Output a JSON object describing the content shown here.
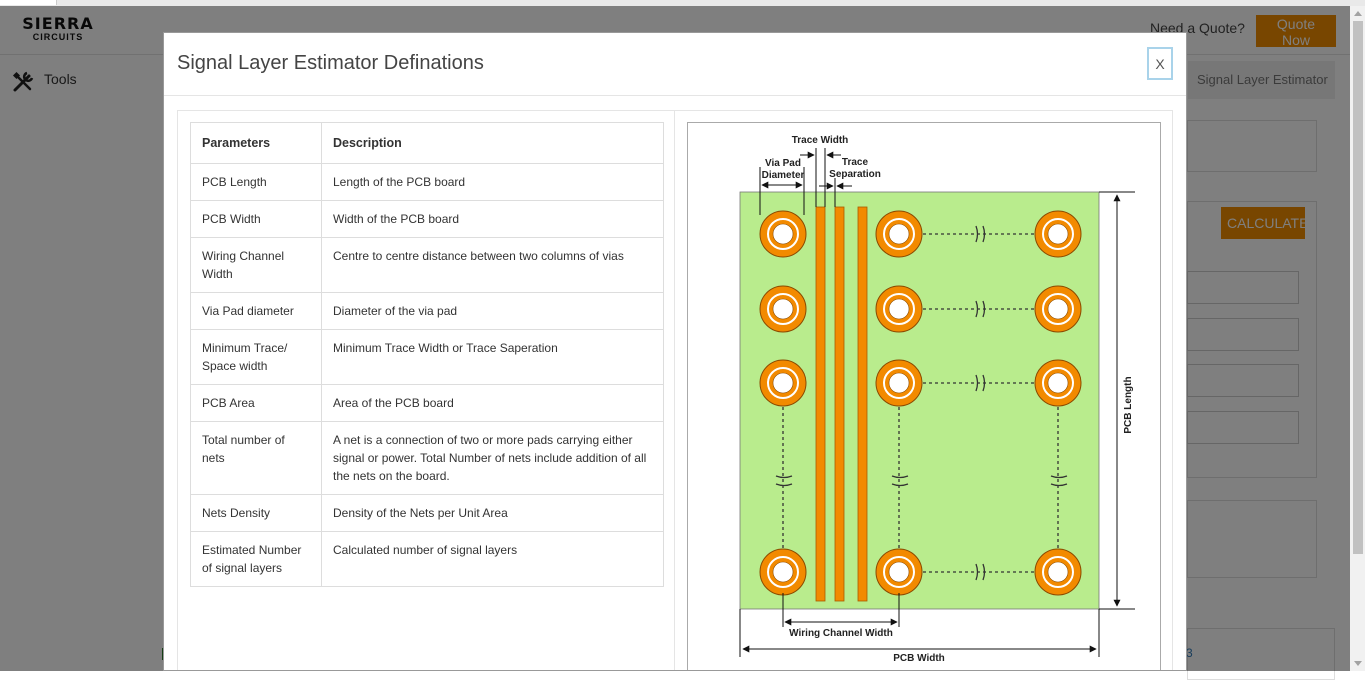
{
  "header": {
    "logo_line1": "SIERRA",
    "logo_line2": "CIRCUITS",
    "need_quote": "Need a Quote?",
    "quote_button": "Quote Now"
  },
  "sidebar": {
    "tools_label": "Tools"
  },
  "breadcrumb": {
    "current": "Signal Layer Estimator"
  },
  "main": {
    "calculate_button": "CALCULATE",
    "footer_link_fragment": "3"
  },
  "modal": {
    "title": "Signal Layer Estimator Definations",
    "close_label": "X",
    "table": {
      "headers": [
        "Parameters",
        "Description"
      ],
      "rows": [
        {
          "param": "PCB Length",
          "desc": "Length of the PCB board"
        },
        {
          "param": "PCB Width",
          "desc": "Width of the PCB board"
        },
        {
          "param": "Wiring Channel Width",
          "desc": "Centre to centre distance between two columns of vias"
        },
        {
          "param": "Via Pad diameter",
          "desc": "Diameter of the via pad"
        },
        {
          "param": "Minimum Trace/ Space width",
          "desc": "Minimum Trace Width or Trace Saperation"
        },
        {
          "param": "PCB Area",
          "desc": "Area of the PCB board"
        },
        {
          "param": "Total number of nets",
          "desc": "A net is a connection of two or more pads carrying either signal or power. Total Number of nets include addition of all the nets on the board."
        },
        {
          "param": "Nets Density",
          "desc": "Density of the Nets per Unit Area"
        },
        {
          "param": "Estimated Number of signal layers",
          "desc": "Calculated number of signal layers"
        }
      ]
    },
    "diagram": {
      "trace_width": "Trace Width",
      "via_pad": "Via Pad",
      "diameter": "Diameter",
      "trace": "Trace",
      "separation": "Separation",
      "pcb_length": "PCB Length",
      "wiring_channel_width": "Wiring Channel Width",
      "pcb_width": "PCB Width",
      "colors": {
        "board": "#b9ec8d",
        "copper": "#f28a00",
        "hole": "#ffffff"
      }
    }
  }
}
